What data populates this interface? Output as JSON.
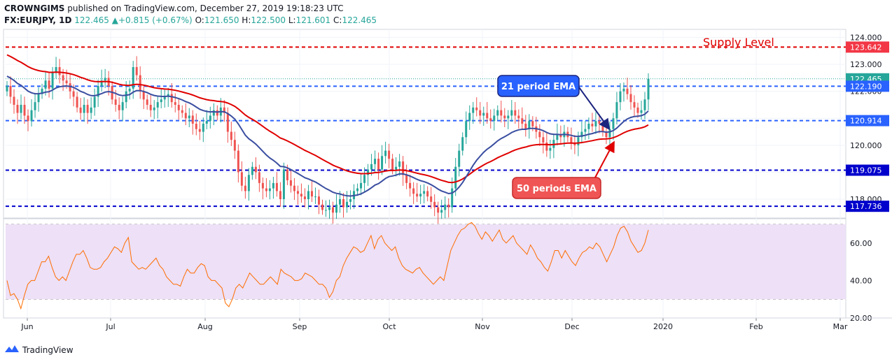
{
  "header": {
    "publisher": "CROWNGIMS",
    "published_text": "published on TradingView.com, December 27, 2019 19:18:23 UTC",
    "symbol": "FX:EURJPY, 1D",
    "last": "122.465",
    "change": "+0.815 (+0.67%)",
    "o_label": "O:",
    "o_value": "121.650",
    "h_label": "H:",
    "h_value": "122.500",
    "l_label": "L:",
    "l_value": "121.601",
    "c_label": "C:",
    "c_value": "122.465",
    "up_arrow": "▲"
  },
  "footer": {
    "brand": "TradingView",
    "logo_icon": "tradingview-logo-icon"
  },
  "chart_data": [
    {
      "type": "candlestick",
      "symbol": "FX:EURJPY",
      "interval": "1D",
      "ylim": [
        117.3,
        124.3
      ],
      "y_ticks": [
        "124.000",
        "123.000",
        "122.000",
        "121.000",
        "120.000",
        "119.000",
        "118.000"
      ],
      "x_ticks": [
        "Jun",
        "Jul",
        "Aug",
        "Sep",
        "Oct",
        "Nov",
        "Dec",
        "2020",
        "Feb",
        "Mar"
      ],
      "grid": true,
      "price_labels": [
        {
          "text": "123.642",
          "value": 123.642,
          "color": "#f23645"
        },
        {
          "text": "122.465",
          "value": 122.465,
          "color": "#26a69a"
        },
        {
          "text": "122.190",
          "value": 122.19,
          "color": "#2962ff"
        },
        {
          "text": "120.914",
          "value": 120.914,
          "color": "#2962ff"
        },
        {
          "text": "119.075",
          "value": 119.075,
          "color": "#0000cc"
        },
        {
          "text": "117.736",
          "value": 117.736,
          "color": "#0000cc"
        }
      ],
      "horizontal_levels": [
        {
          "value": 123.642,
          "color": "#e00000",
          "style": "dashed"
        },
        {
          "value": 122.19,
          "color": "#2962ff",
          "style": "dashed"
        },
        {
          "value": 120.914,
          "color": "#2962ff",
          "style": "dashed"
        },
        {
          "value": 119.075,
          "color": "#0000cc",
          "style": "dashed"
        },
        {
          "value": 117.736,
          "color": "#0000cc",
          "style": "dashed"
        }
      ],
      "ema_series": [
        {
          "name": "21 period EMA",
          "color": "#3a4ea0"
        },
        {
          "name": "50 periods EMA",
          "color": "#e00000"
        }
      ],
      "annotations": [
        {
          "text": "Supply Level",
          "color": "#e00000"
        },
        {
          "text": "21 period EMA",
          "bg": "#2962ff"
        },
        {
          "text": "50 periods EMA",
          "bg": "#f05555"
        }
      ],
      "closes": [
        122.2,
        121.8,
        121.5,
        121.2,
        121.5,
        121.1,
        120.9,
        121.3,
        121.6,
        121.9,
        122.1,
        122.4,
        122.1,
        122.7,
        122.9,
        122.6,
        122.4,
        122.3,
        122.0,
        121.8,
        121.4,
        121.2,
        121.5,
        121.2,
        121.4,
        121.8,
        122.2,
        122.4,
        122.5,
        122.2,
        121.7,
        121.5,
        121.3,
        121.6,
        122.0,
        122.1,
        122.9,
        122.6,
        122.0,
        121.7,
        121.5,
        121.3,
        121.4,
        121.6,
        121.7,
        121.8,
        121.9,
        121.6,
        121.5,
        121.3,
        121.2,
        121.0,
        121.1,
        120.8,
        120.6,
        120.5,
        120.8,
        120.9,
        121.1,
        121.3,
        121.1,
        121.4,
        121.2,
        120.5,
        120.2,
        119.8,
        119.0,
        118.5,
        118.3,
        118.9,
        119.2,
        119.0,
        118.6,
        118.4,
        118.3,
        118.4,
        118.6,
        118.3,
        118.0,
        119.1,
        118.7,
        118.5,
        118.3,
        118.2,
        118.1,
        118.0,
        118.3,
        118.1,
        118.1,
        117.8,
        117.6,
        117.6,
        117.7,
        117.5,
        117.8,
        118.0,
        117.7,
        117.9,
        118.0,
        118.3,
        118.4,
        118.6,
        118.9,
        119.1,
        119.3,
        119.5,
        119.1,
        119.6,
        119.8,
        119.5,
        119.1,
        119.2,
        119.4,
        118.9,
        118.6,
        118.4,
        118.2,
        118.1,
        118.2,
        118.3,
        118.1,
        117.9,
        117.7,
        117.5,
        117.6,
        117.8,
        117.7,
        118.4,
        119.2,
        119.8,
        120.3,
        120.9,
        121.2,
        121.4,
        121.3,
        121.1,
        121.2,
        121.0,
        120.9,
        121.1,
        121.3,
        121.1,
        121.0,
        121.1,
        121.3,
        121.1,
        121.0,
        120.8,
        120.6,
        120.9,
        120.7,
        120.5,
        120.3,
        120.1,
        119.8,
        119.9,
        120.2,
        120.4,
        120.3,
        120.5,
        120.3,
        120.1,
        120.0,
        120.3,
        120.5,
        120.6,
        120.8,
        120.7,
        120.9,
        120.8,
        120.5,
        120.3,
        120.6,
        121.0,
        121.6,
        122.0,
        122.1,
        121.9,
        121.6,
        121.4,
        121.2,
        121.3,
        121.7,
        122.465
      ]
    },
    {
      "type": "line",
      "name": "RSI",
      "color": "#ff6d00",
      "ylim": [
        20,
        73
      ],
      "y_ticks": [
        "60.00",
        "40.00",
        "20.00"
      ],
      "band": [
        30,
        70
      ],
      "band_color": "#e1bee7",
      "values": [
        40,
        32,
        33,
        30,
        25,
        32,
        38,
        40,
        40,
        45,
        50,
        50,
        53,
        47,
        42,
        40,
        42,
        40,
        45,
        50,
        54,
        54,
        56,
        52,
        47,
        46,
        46,
        47,
        50,
        52,
        55,
        58,
        57,
        55,
        60,
        63,
        50,
        48,
        46,
        47,
        46,
        48,
        50,
        52,
        48,
        46,
        42,
        40,
        38,
        38,
        37,
        42,
        46,
        44,
        44,
        47,
        49,
        48,
        42,
        40,
        40,
        38,
        36,
        28,
        26,
        30,
        36,
        38,
        36,
        40,
        44,
        42,
        40,
        38,
        38,
        40,
        42,
        40,
        38,
        46,
        44,
        43,
        42,
        40,
        40,
        41,
        44,
        43,
        42,
        40,
        38,
        38,
        36,
        31,
        34,
        40,
        42,
        48,
        52,
        55,
        58,
        57,
        55,
        56,
        60,
        64,
        57,
        62,
        64,
        60,
        58,
        56,
        58,
        52,
        48,
        46,
        45,
        44,
        46,
        47,
        44,
        42,
        40,
        38,
        40,
        42,
        40,
        48,
        56,
        60,
        64,
        67,
        68,
        70,
        71,
        69,
        65,
        62,
        66,
        64,
        61,
        64,
        67,
        62,
        60,
        62,
        64,
        60,
        58,
        56,
        54,
        59,
        56,
        52,
        50,
        47,
        45,
        50,
        56,
        56,
        52,
        56,
        53,
        50,
        48,
        52,
        55,
        56,
        58,
        57,
        60,
        58,
        54,
        50,
        54,
        58,
        64,
        68,
        69,
        66,
        61,
        58,
        55,
        56,
        60,
        67
      ]
    }
  ]
}
